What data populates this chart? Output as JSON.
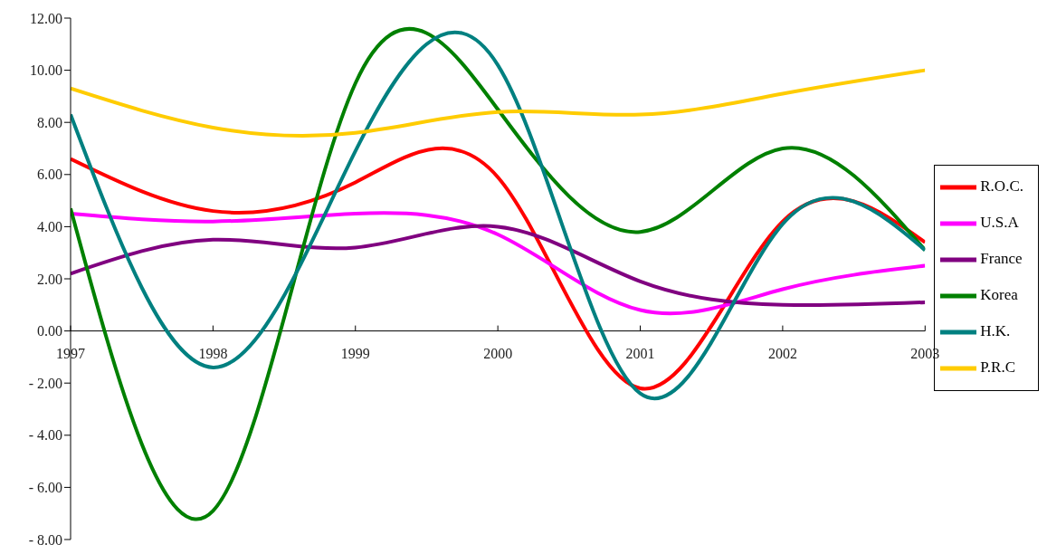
{
  "chart_data": {
    "type": "line",
    "x": [
      1997,
      1998,
      1999,
      2000,
      2001,
      2002,
      2003
    ],
    "series": [
      {
        "name": "R.O.C.",
        "color": "#ff0000",
        "values": [
          6.6,
          4.6,
          5.7,
          5.9,
          -2.2,
          4.2,
          3.4
        ]
      },
      {
        "name": "U.S.A",
        "color": "#ff00ff",
        "values": [
          4.5,
          4.2,
          4.5,
          3.7,
          0.8,
          1.6,
          2.5
        ]
      },
      {
        "name": "France",
        "color": "#800080",
        "values": [
          2.2,
          3.5,
          3.2,
          4.0,
          1.9,
          1.0,
          1.1
        ]
      },
      {
        "name": "Korea",
        "color": "#008000",
        "values": [
          4.7,
          -6.9,
          9.5,
          8.5,
          3.8,
          7.0,
          3.1
        ]
      },
      {
        "name": "H.K.",
        "color": "#008080",
        "values": [
          8.3,
          -1.4,
          6.9,
          10.2,
          -2.4,
          4.1,
          3.1
        ]
      },
      {
        "name": "P.R.C",
        "color": "#ffcc00",
        "values": [
          9.3,
          7.8,
          7.6,
          8.4,
          8.3,
          9.1,
          10.0
        ]
      }
    ],
    "xlim": [
      1997,
      2003
    ],
    "xticks": [
      1997,
      1998,
      1999,
      2000,
      2001,
      2002,
      2003
    ],
    "ylim": [
      -8,
      12
    ],
    "yticks": [
      {
        "value": -8,
        "label": "- 8.00"
      },
      {
        "value": -6,
        "label": "- 6.00"
      },
      {
        "value": -4,
        "label": "- 4.00"
      },
      {
        "value": -2,
        "label": "- 2.00"
      },
      {
        "value": 0,
        "label": "0.00"
      },
      {
        "value": 2,
        "label": "2.00"
      },
      {
        "value": 4,
        "label": "4.00"
      },
      {
        "value": 6,
        "label": "6.00"
      },
      {
        "value": 8,
        "label": "8.00"
      },
      {
        "value": 10,
        "label": "10.00"
      },
      {
        "value": 12,
        "label": "12.00"
      }
    ],
    "legend": "right",
    "grid": false,
    "marker": "none",
    "line_style": "solid"
  }
}
